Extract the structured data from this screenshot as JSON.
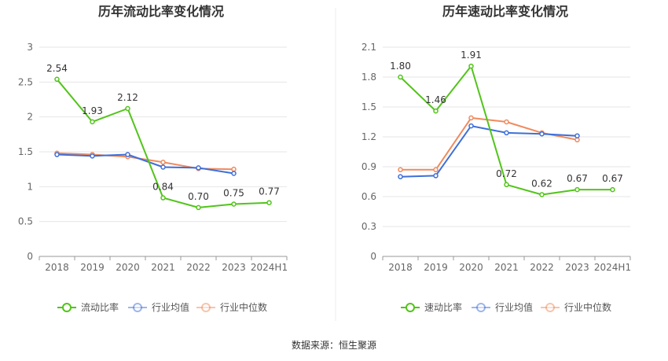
{
  "source_label": "数据来源：恒生聚源",
  "colors": {
    "main": "#52c41a",
    "avg": "#3e6fd8",
    "median": "#f08a5d",
    "grid": "#e6e6e6",
    "axis": "#999999"
  },
  "chart_data": [
    {
      "type": "line",
      "title": "历年流动比率变化情况",
      "categories": [
        "2018",
        "2019",
        "2020",
        "2021",
        "2022",
        "2023",
        "2024H1"
      ],
      "ylim": [
        0,
        3
      ],
      "yticks": [
        "0",
        "0.5",
        "1",
        "1.5",
        "2",
        "2.5",
        "3"
      ],
      "ytick_values": [
        0,
        0.5,
        1,
        1.5,
        2,
        2.5,
        3
      ],
      "grid": true,
      "legend_position": "bottom",
      "series": [
        {
          "name": "流动比率",
          "values": [
            2.54,
            1.93,
            2.12,
            0.84,
            0.7,
            0.75,
            0.77
          ],
          "labels": [
            "2.54",
            "1.93",
            "2.12",
            "0.84",
            "0.70",
            "0.75",
            "0.77"
          ]
        },
        {
          "name": "行业均值",
          "values": [
            1.46,
            1.44,
            1.46,
            1.28,
            1.27,
            1.19,
            null
          ]
        },
        {
          "name": "行业中位数",
          "values": [
            1.48,
            1.46,
            1.43,
            1.35,
            1.26,
            1.25,
            null
          ]
        }
      ]
    },
    {
      "type": "line",
      "title": "历年速动比率变化情况",
      "categories": [
        "2018",
        "2019",
        "2020",
        "2021",
        "2022",
        "2023",
        "2024H1"
      ],
      "ylim": [
        0,
        2.1
      ],
      "yticks": [
        "0",
        "0.3",
        "0.6",
        "0.9",
        "1.2",
        "1.5",
        "1.8",
        "2.1"
      ],
      "ytick_values": [
        0,
        0.3,
        0.6,
        0.9,
        1.2,
        1.5,
        1.8,
        2.1
      ],
      "grid": true,
      "legend_position": "bottom",
      "series": [
        {
          "name": "速动比率",
          "values": [
            1.8,
            1.46,
            1.91,
            0.72,
            0.62,
            0.67,
            0.67
          ],
          "labels": [
            "1.80",
            "1.46",
            "1.91",
            "0.72",
            "0.62",
            "0.67",
            "0.67"
          ]
        },
        {
          "name": "行业均值",
          "values": [
            0.8,
            0.81,
            1.31,
            1.24,
            1.23,
            1.21,
            null
          ]
        },
        {
          "name": "行业中位数",
          "values": [
            0.87,
            0.87,
            1.39,
            1.35,
            1.24,
            1.17,
            null
          ]
        }
      ]
    }
  ]
}
